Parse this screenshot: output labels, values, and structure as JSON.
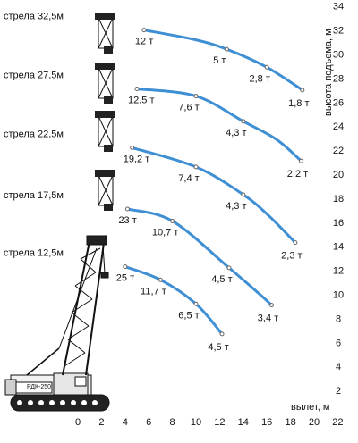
{
  "colors": {
    "curve": "#3f8fd4",
    "marker": "#666666",
    "text": "#111111",
    "crane": "#111111"
  },
  "chart_data": {
    "type": "line",
    "xlabel": "вылет, м",
    "ylabel": "высота подъема, м",
    "xlim": [
      0,
      22
    ],
    "ylim": [
      0,
      34
    ],
    "x_ticks": [
      0,
      2,
      4,
      6,
      8,
      10,
      12,
      14,
      16,
      18,
      20,
      22
    ],
    "y_ticks": [
      2,
      4,
      6,
      8,
      10,
      12,
      14,
      16,
      18,
      20,
      22,
      24,
      26,
      28,
      30,
      32,
      34
    ],
    "crane_label": "РДК-250",
    "series": [
      {
        "name": "стрела 32,5м",
        "x": [
          5.6,
          9.9,
          12.6,
          16.0,
          19.0
        ],
        "y": [
          32.0,
          31.2,
          30.4,
          28.9,
          27.0
        ],
        "markers": [
          {
            "x": 5.6,
            "y": 32.0,
            "label": "12 т"
          },
          {
            "x": 12.6,
            "y": 30.4,
            "label": "5 т"
          },
          {
            "x": 16.0,
            "y": 28.9,
            "label": "2,8 т"
          },
          {
            "x": 19.0,
            "y": 27.0,
            "label": "1,8 т"
          }
        ]
      },
      {
        "name": "стрела 27,5м",
        "x": [
          5.0,
          10.0,
          14.0,
          16.8,
          18.9
        ],
        "y": [
          27.1,
          26.5,
          24.4,
          22.9,
          21.1
        ],
        "markers": [
          {
            "x": 5.0,
            "y": 27.1,
            "label": "12,5 т"
          },
          {
            "x": 10.0,
            "y": 26.5,
            "label": "7,6 т"
          },
          {
            "x": 14.0,
            "y": 24.4,
            "label": "4,3 т"
          },
          {
            "x": 18.9,
            "y": 21.1,
            "label": "2,2 т"
          }
        ]
      },
      {
        "name": "стрела 22,5м",
        "x": [
          4.6,
          10.0,
          14.0,
          16.2,
          18.4
        ],
        "y": [
          22.2,
          20.6,
          18.3,
          16.5,
          14.3
        ],
        "markers": [
          {
            "x": 4.6,
            "y": 22.2,
            "label": "19,2 т"
          },
          {
            "x": 10.0,
            "y": 20.6,
            "label": "7,4 т"
          },
          {
            "x": 14.0,
            "y": 18.3,
            "label": "4,3 т"
          },
          {
            "x": 18.4,
            "y": 14.3,
            "label": "2,3 т"
          }
        ]
      },
      {
        "name": "стрела 17,5м",
        "x": [
          4.2,
          8.0,
          12.8,
          15.4,
          16.4
        ],
        "y": [
          17.1,
          16.1,
          12.2,
          10.0,
          9.1
        ],
        "markers": [
          {
            "x": 4.2,
            "y": 17.1,
            "label": "23 т"
          },
          {
            "x": 8.0,
            "y": 16.1,
            "label": "10,7 т"
          },
          {
            "x": 12.8,
            "y": 12.2,
            "label": "4,5 т"
          },
          {
            "x": 16.4,
            "y": 9.1,
            "label": "3,4 т"
          }
        ]
      },
      {
        "name": "стрела 12,5м",
        "x": [
          4.0,
          7.0,
          10.0,
          12.2
        ],
        "y": [
          12.3,
          11.2,
          9.2,
          6.7
        ],
        "markers": [
          {
            "x": 4.0,
            "y": 12.3,
            "label": "25 т"
          },
          {
            "x": 7.0,
            "y": 11.2,
            "label": "11,7 т"
          },
          {
            "x": 10.0,
            "y": 9.2,
            "label": "6,5 т"
          },
          {
            "x": 12.2,
            "y": 6.7,
            "label": "4,5 т"
          }
        ]
      }
    ]
  }
}
